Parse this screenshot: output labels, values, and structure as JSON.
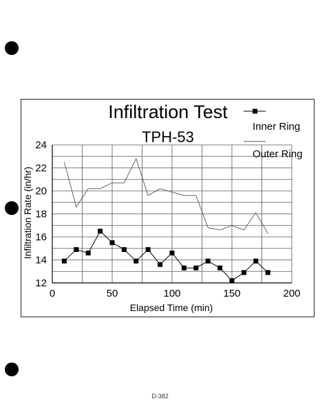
{
  "page": {
    "label": "D-382"
  },
  "chart_data": {
    "type": "line",
    "title": "Infiltration Test",
    "subtitle": "TPH-53",
    "xlabel": "Elapsed Time (min)",
    "ylabel": "Infiltration Rate (in/hr)",
    "xlim": [
      0,
      200
    ],
    "ylim": [
      12,
      24
    ],
    "xticks": [
      0,
      50,
      100,
      150,
      200
    ],
    "yticks": [
      12,
      14,
      16,
      18,
      20,
      22,
      24
    ],
    "grid": true,
    "legend_position": "top-right",
    "series": [
      {
        "name": "Inner Ring",
        "marker": "square",
        "color": "#000000",
        "x": [
          10,
          20,
          30,
          40,
          50,
          60,
          70,
          80,
          90,
          100,
          110,
          120,
          130,
          140,
          150,
          160,
          170,
          180
        ],
        "y": [
          13.9,
          14.9,
          14.6,
          16.5,
          15.5,
          14.9,
          13.9,
          14.9,
          13.6,
          14.6,
          13.3,
          13.3,
          13.9,
          13.3,
          12.2,
          12.9,
          13.9,
          12.9
        ]
      },
      {
        "name": "Outer Ring",
        "marker": "none",
        "color": "#555555",
        "x": [
          10,
          20,
          30,
          40,
          50,
          60,
          70,
          80,
          90,
          100,
          110,
          120,
          130,
          140,
          150,
          160,
          170,
          180
        ],
        "y": [
          22.5,
          18.6,
          20.2,
          20.2,
          20.7,
          20.7,
          22.8,
          19.6,
          20.2,
          19.9,
          19.6,
          19.6,
          16.8,
          16.6,
          17.0,
          16.6,
          18.1,
          16.3
        ]
      }
    ]
  }
}
